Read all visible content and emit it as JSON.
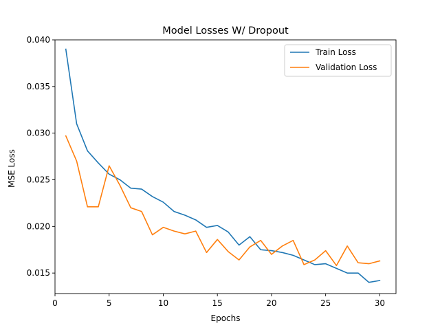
{
  "chart_data": {
    "type": "line",
    "title": "Model Losses W/ Dropout",
    "xlabel": "Epochs",
    "ylabel": "MSE Loss",
    "xlim": [
      0,
      31.5
    ],
    "ylim": [
      0.0128,
      0.04
    ],
    "xticks": [
      0,
      5,
      10,
      15,
      20,
      25,
      30
    ],
    "yticks": [
      0.015,
      0.02,
      0.025,
      0.03,
      0.035,
      0.04
    ],
    "xtick_labels": [
      "0",
      "5",
      "10",
      "15",
      "20",
      "25",
      "30"
    ],
    "ytick_labels": [
      "0.015",
      "0.020",
      "0.025",
      "0.030",
      "0.035",
      "0.040"
    ],
    "grid": false,
    "legend": "top-right",
    "x": [
      1,
      2,
      3,
      4,
      5,
      6,
      7,
      8,
      9,
      10,
      11,
      12,
      13,
      14,
      15,
      16,
      17,
      18,
      19,
      20,
      21,
      22,
      23,
      24,
      25,
      26,
      27,
      28,
      29,
      30
    ],
    "series": [
      {
        "name": "Train Loss",
        "color": "#1f77b4",
        "values": [
          0.039,
          0.031,
          0.0281,
          0.0268,
          0.0256,
          0.025,
          0.0241,
          0.024,
          0.0232,
          0.0226,
          0.0216,
          0.0212,
          0.0207,
          0.0199,
          0.0201,
          0.0194,
          0.018,
          0.0189,
          0.0175,
          0.0174,
          0.0172,
          0.0169,
          0.0164,
          0.0159,
          0.016,
          0.0155,
          0.015,
          0.015,
          0.014,
          0.0142
        ]
      },
      {
        "name": "Validation Loss",
        "color": "#ff7f0e",
        "values": [
          0.0297,
          0.027,
          0.0221,
          0.0221,
          0.0265,
          0.0244,
          0.022,
          0.0216,
          0.0191,
          0.0199,
          0.0195,
          0.0192,
          0.0195,
          0.0172,
          0.0186,
          0.0173,
          0.0164,
          0.0178,
          0.0185,
          0.017,
          0.0179,
          0.0185,
          0.0159,
          0.0164,
          0.0174,
          0.0158,
          0.0179,
          0.0161,
          0.016,
          0.0163
        ]
      }
    ]
  }
}
